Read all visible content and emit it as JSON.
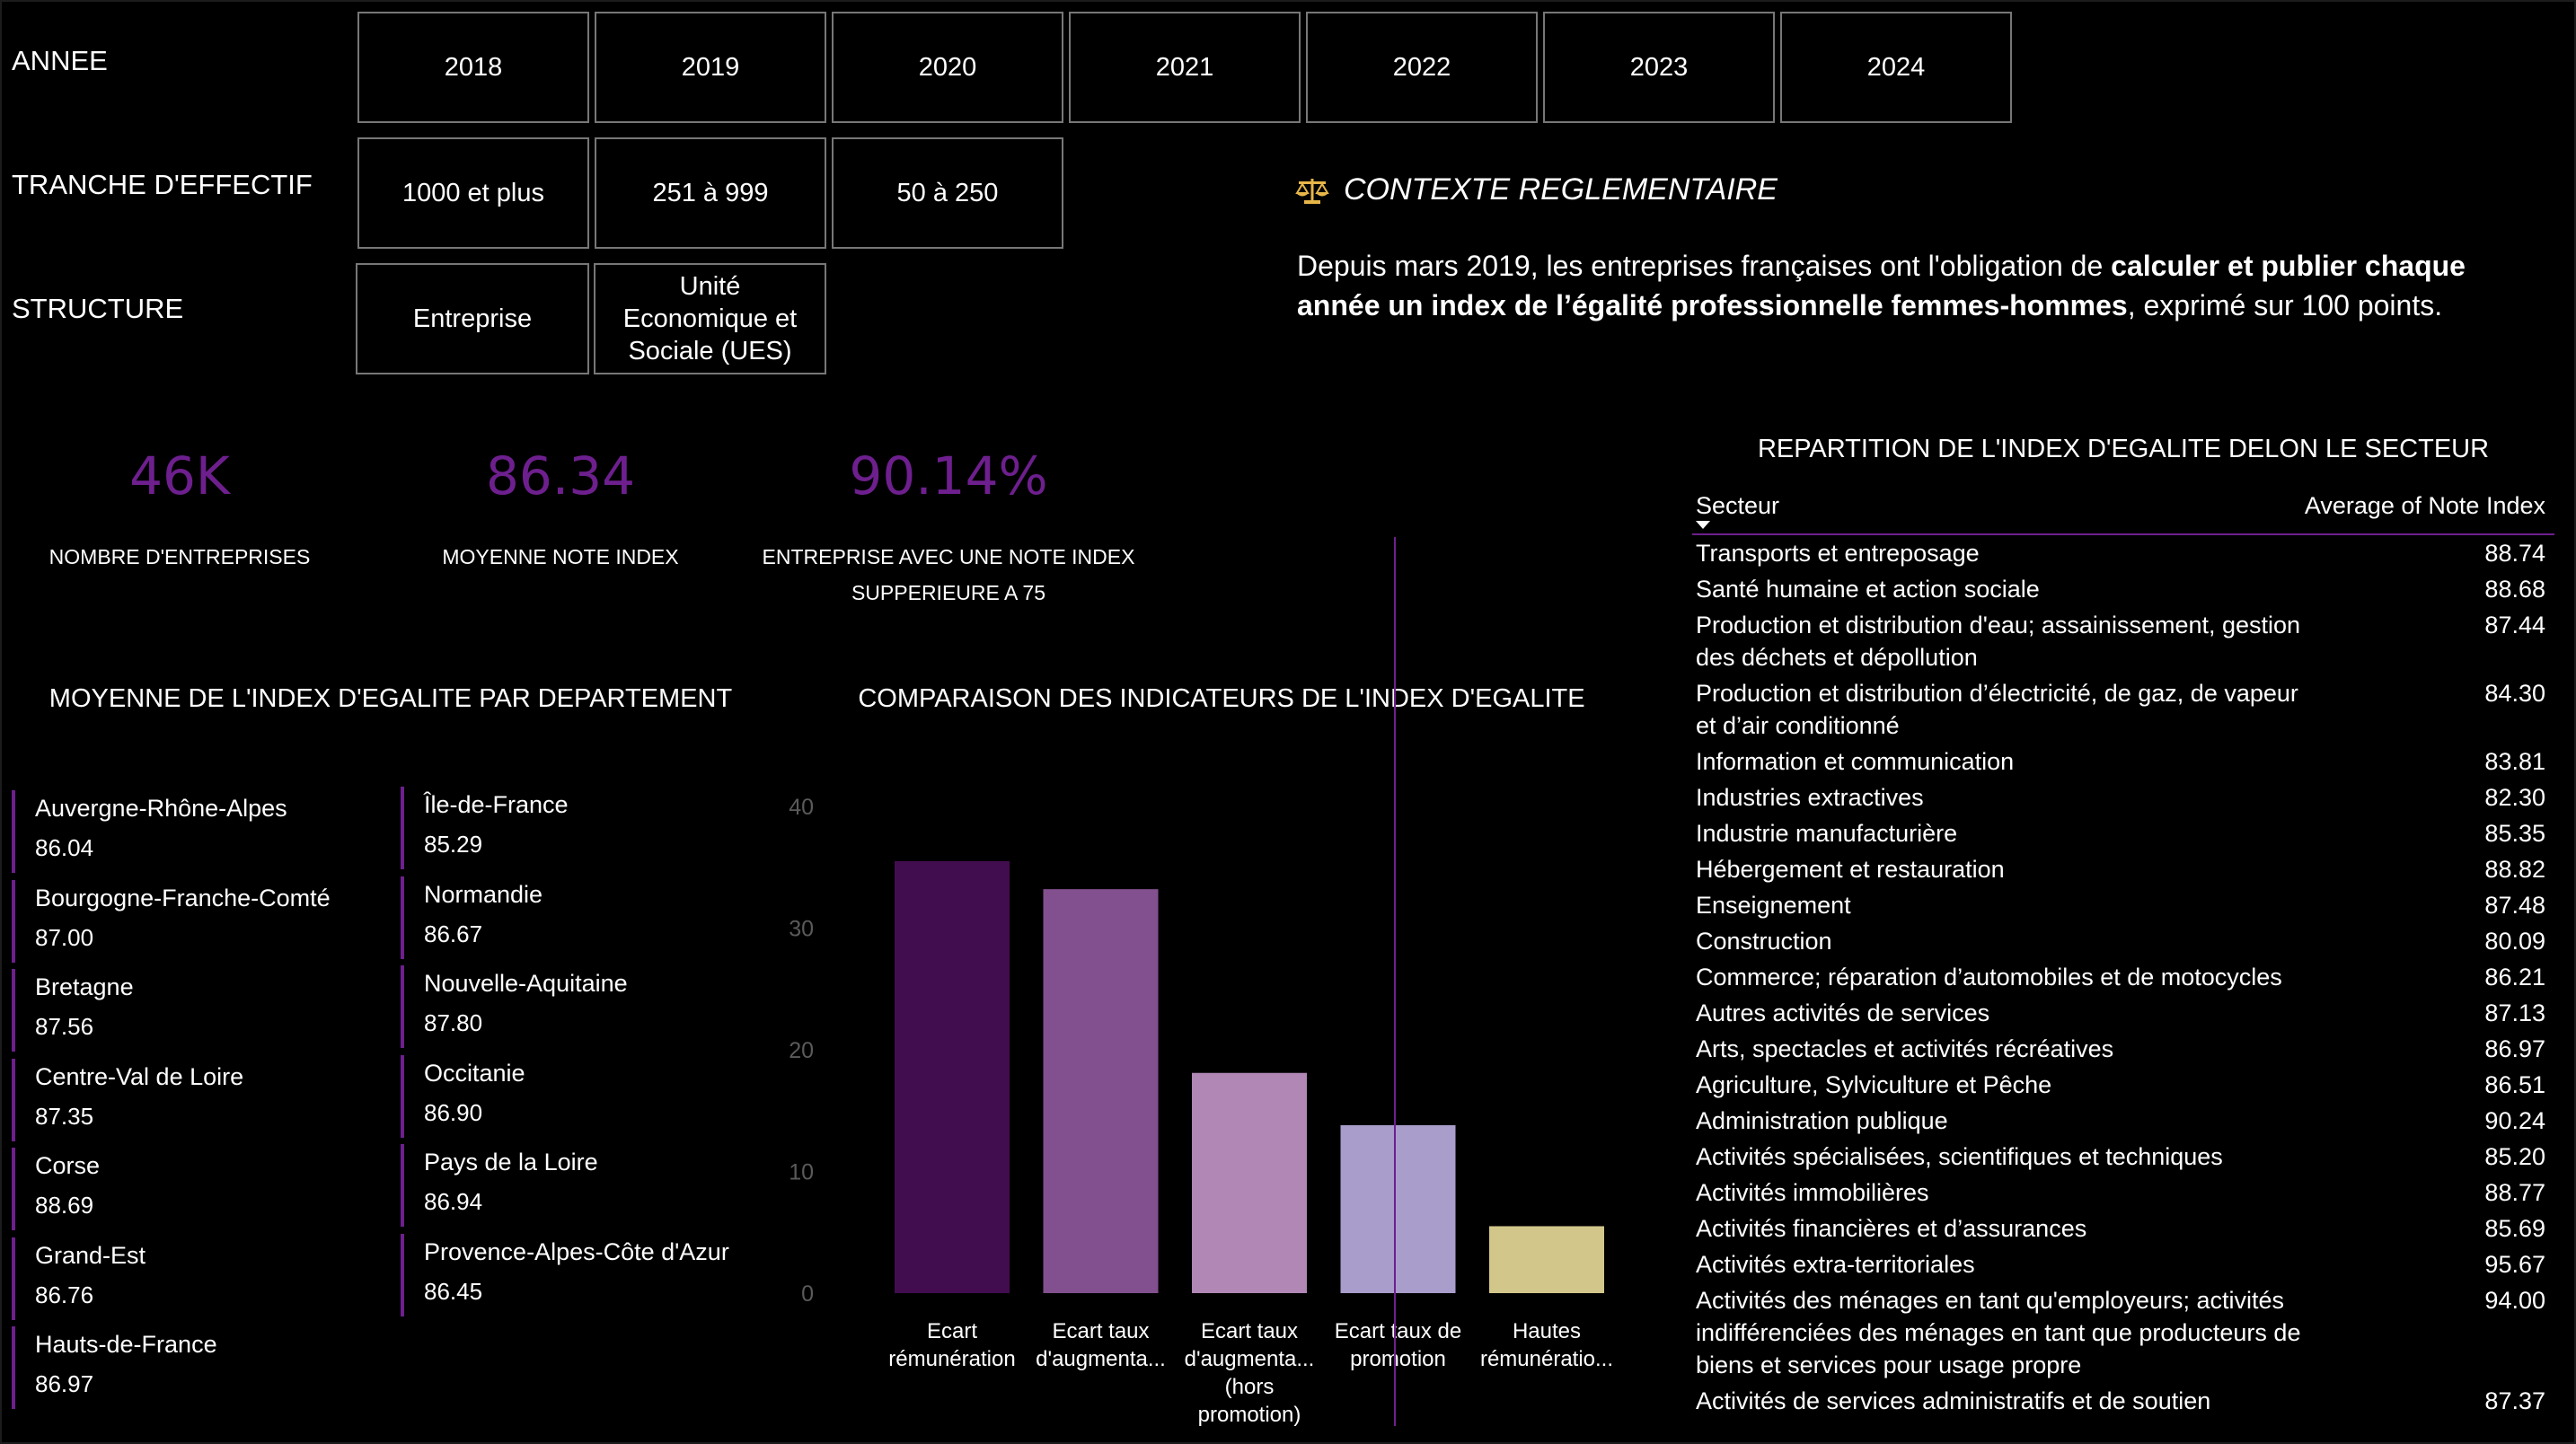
{
  "filters": {
    "annee": {
      "label": "ANNEE",
      "options": [
        "2018",
        "2019",
        "2020",
        "2021",
        "2022",
        "2023",
        "2024"
      ]
    },
    "tranche": {
      "label": "TRANCHE D'EFFECTIF",
      "options": [
        "1000 et plus",
        "251 à 999",
        "50 à 250"
      ]
    },
    "structure": {
      "label": "STRUCTURE",
      "options": [
        "Entreprise",
        "Unité Economique et Sociale (UES)"
      ]
    }
  },
  "context": {
    "icon": "scales-icon",
    "title": "CONTEXTE REGLEMENTAIRE",
    "text_part1": "Depuis mars 2019, les entreprises françaises ont l'obligation de ",
    "text_bold": "calculer et publier chaque année un index de l’égalité professionnelle femmes-hommes",
    "text_part2": ", exprimé sur 100 points."
  },
  "kpis": [
    {
      "value": "46K",
      "label": "NOMBRE D'ENTREPRISES"
    },
    {
      "value": "86.34",
      "label": "MOYENNE NOTE INDEX"
    },
    {
      "value": "90.14%",
      "label": "ENTREPRISE AVEC UNE NOTE INDEX SUPPERIEURE A 75"
    }
  ],
  "accent_color": "#6e1f8e",
  "departements": {
    "title": "MOYENNE DE L'INDEX D'EGALITE PAR DEPARTEMENT",
    "items": [
      {
        "name": "Auvergne-Rhône-Alpes",
        "value": "86.04"
      },
      {
        "name": "Bourgogne-Franche-Comté",
        "value": "87.00"
      },
      {
        "name": "Bretagne",
        "value": "87.56"
      },
      {
        "name": "Centre-Val de Loire",
        "value": "87.35"
      },
      {
        "name": "Corse",
        "value": "88.69"
      },
      {
        "name": "Grand-Est",
        "value": "86.76"
      },
      {
        "name": "Hauts-de-France",
        "value": "86.97"
      },
      {
        "name": "Île-de-France",
        "value": "85.29"
      },
      {
        "name": "Normandie",
        "value": "86.67"
      },
      {
        "name": "Nouvelle-Aquitaine",
        "value": "87.80"
      },
      {
        "name": "Occitanie",
        "value": "86.90"
      },
      {
        "name": "Pays de la Loire",
        "value": "86.94"
      },
      {
        "name": "Provence-Alpes-Côte d'Azur",
        "value": "86.45"
      }
    ]
  },
  "chart_data": {
    "type": "bar",
    "title": "COMPARAISON DES INDICATEURS DE L'INDEX D'EGALITE",
    "xlabel": "",
    "ylabel": "",
    "ylim": [
      0,
      40
    ],
    "yticks": [
      0,
      10,
      20,
      30,
      40
    ],
    "grid": false,
    "categories": [
      [
        "Ecart",
        "rémunération"
      ],
      [
        "Ecart taux",
        "d'augmenta..."
      ],
      [
        "Ecart taux",
        "d'augmenta...",
        "(hors",
        "promotion)"
      ],
      [
        "Ecart taux de",
        "promotion"
      ],
      [
        "Hautes",
        "rémunératio..."
      ]
    ],
    "values": [
      35.5,
      33.2,
      18.1,
      13.8,
      5.5
    ],
    "colors": [
      "#420d4f",
      "#83508f",
      "#b087b5",
      "#a99dcb",
      "#d2c68a"
    ]
  },
  "secteur_table": {
    "title": "REPARTITION DE L'INDEX D'EGALITE DELON LE SECTEUR",
    "col1": "Secteur",
    "col2": "Average of Note Index",
    "rows": [
      {
        "s": "Transports et entreposage",
        "v": "88.74"
      },
      {
        "s": "Santé humaine et action sociale",
        "v": "88.68"
      },
      {
        "s": "Production et distribution d'eau; assainissement, gestion des déchets et dépollution",
        "v": "87.44"
      },
      {
        "s": "Production et distribution d’électricité, de gaz, de vapeur et d’air conditionné",
        "v": "84.30"
      },
      {
        "s": "Information et communication",
        "v": "83.81"
      },
      {
        "s": "Industries extractives",
        "v": "82.30"
      },
      {
        "s": "Industrie manufacturière",
        "v": "85.35"
      },
      {
        "s": "Hébergement et restauration",
        "v": "88.82"
      },
      {
        "s": "Enseignement",
        "v": "87.48"
      },
      {
        "s": "Construction",
        "v": "80.09"
      },
      {
        "s": "Commerce; réparation d’automobiles et de motocycles",
        "v": "86.21"
      },
      {
        "s": "Autres activités de services",
        "v": "87.13"
      },
      {
        "s": "Arts, spectacles et activités récréatives",
        "v": "86.97"
      },
      {
        "s": "Agriculture, Sylviculture et Pêche",
        "v": "86.51"
      },
      {
        "s": "Administration publique",
        "v": "90.24"
      },
      {
        "s": "Activités spécialisées, scientifiques et techniques",
        "v": "85.20"
      },
      {
        "s": "Activités immobilières",
        "v": "88.77"
      },
      {
        "s": "Activités financières et d’assurances",
        "v": "85.69"
      },
      {
        "s": "Activités extra-territoriales",
        "v": "95.67"
      },
      {
        "s": "Activités des ménages en tant qu'employeurs; activités indifférenciées des ménages en tant que producteurs de biens et services pour usage propre",
        "v": "94.00"
      },
      {
        "s": "Activités de services administratifs et de soutien",
        "v": "87.37"
      }
    ]
  }
}
